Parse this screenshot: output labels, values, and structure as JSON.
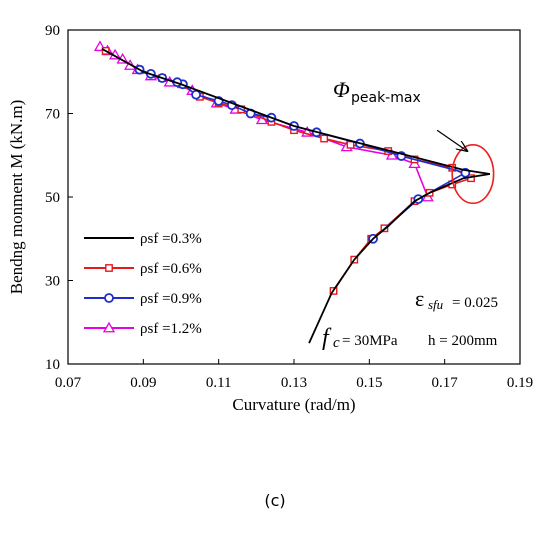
{
  "caption": "(c)",
  "chart_data": {
    "type": "line",
    "xlabel": "Curvature  (rad/m)",
    "ylabel": "Bendng monment M  (kN.m)",
    "xlim": [
      0.07,
      0.19
    ],
    "ylim": [
      10,
      90
    ],
    "xticks": [
      0.07,
      0.09,
      0.11,
      0.13,
      0.15,
      0.17,
      0.19
    ],
    "yticks": [
      10,
      30,
      50,
      70,
      90
    ],
    "xtick_labels": [
      "0.07",
      "0.09",
      "0.11",
      "0.13",
      "0.15",
      "0.17",
      "0.19"
    ],
    "ytick_labels": [
      "10",
      "30",
      "50",
      "70",
      "90"
    ],
    "legend_position": "lower-left",
    "grid": false,
    "series": [
      {
        "name": "ρsf =0.3%",
        "color": "#000000",
        "marker": "none",
        "points": [
          [
            0.134,
            15
          ],
          [
            0.14,
            27
          ],
          [
            0.146,
            35
          ],
          [
            0.151,
            40
          ],
          [
            0.155,
            43
          ],
          [
            0.162,
            49
          ],
          [
            0.166,
            51
          ],
          [
            0.175,
            54.5
          ],
          [
            0.182,
            55.5
          ],
          [
            0.175,
            56.5
          ],
          [
            0.16,
            60
          ],
          [
            0.147,
            63
          ],
          [
            0.13,
            67
          ],
          [
            0.115,
            72
          ],
          [
            0.1,
            77
          ],
          [
            0.09,
            80
          ],
          [
            0.079,
            85.5
          ]
        ]
      },
      {
        "name": "ρsf =0.6%",
        "color": "#e41a1c",
        "marker": "square",
        "points": [
          [
            0.1405,
            27.5
          ],
          [
            0.146,
            35
          ],
          [
            0.1505,
            40
          ],
          [
            0.154,
            42.5
          ],
          [
            0.162,
            49
          ],
          [
            0.166,
            51
          ],
          [
            0.172,
            53
          ],
          [
            0.177,
            54.5
          ],
          [
            0.172,
            57
          ],
          [
            0.162,
            59
          ],
          [
            0.155,
            61
          ],
          [
            0.145,
            62.5
          ],
          [
            0.138,
            64
          ],
          [
            0.13,
            66
          ],
          [
            0.124,
            68
          ],
          [
            0.116,
            71
          ],
          [
            0.11,
            72.5
          ],
          [
            0.105,
            74
          ],
          [
            0.1,
            77
          ],
          [
            0.095,
            78.5
          ],
          [
            0.089,
            80.5
          ],
          [
            0.08,
            85
          ]
        ]
      },
      {
        "name": "ρsf =0.9%",
        "color": "#1f2fcc",
        "marker": "circle",
        "points": [
          [
            0.151,
            40
          ],
          [
            0.163,
            49.5
          ],
          [
            0.1755,
            55.8
          ],
          [
            0.1585,
            59.8
          ],
          [
            0.1475,
            62.8
          ],
          [
            0.136,
            65.5
          ],
          [
            0.13,
            67
          ],
          [
            0.124,
            69
          ],
          [
            0.1185,
            70
          ],
          [
            0.1135,
            72
          ],
          [
            0.11,
            73
          ],
          [
            0.104,
            74.5
          ],
          [
            0.1005,
            77
          ],
          [
            0.099,
            77.5
          ],
          [
            0.095,
            78.5
          ],
          [
            0.092,
            79.5
          ],
          [
            0.089,
            80.5
          ]
        ]
      },
      {
        "name": "ρsf =1.2%",
        "color": "#e600e6",
        "marker": "triangle",
        "points": [
          [
            0.1655,
            50
          ],
          [
            0.162,
            58
          ],
          [
            0.156,
            60
          ],
          [
            0.144,
            62
          ],
          [
            0.1335,
            65.5
          ],
          [
            0.1215,
            68.5
          ],
          [
            0.1145,
            71
          ],
          [
            0.1095,
            72.5
          ],
          [
            0.103,
            75.5
          ],
          [
            0.097,
            77.5
          ],
          [
            0.092,
            79
          ],
          [
            0.0885,
            80.5
          ],
          [
            0.0865,
            81.5
          ],
          [
            0.0845,
            83
          ],
          [
            0.0825,
            84
          ],
          [
            0.0805,
            85
          ],
          [
            0.0785,
            86
          ]
        ]
      }
    ],
    "annotations": {
      "phi_symbol": "Φ",
      "phi_subscript": "peak-max",
      "eps_symbol": "ε",
      "eps_subscript": "sfu",
      "eps_value": "= 0.025",
      "fc_symbol": "f",
      "fc_subscript": "c",
      "fc_value": "= 30MPa",
      "h_text": "h = 200mm",
      "arrow_from": [
        0.168,
        66
      ],
      "arrow_to": [
        0.176,
        61
      ],
      "ellipse_center": [
        0.1775,
        55.5
      ],
      "ellipse_radius": [
        0.0055,
        7
      ],
      "ellipse_color": "#ee2222"
    }
  }
}
